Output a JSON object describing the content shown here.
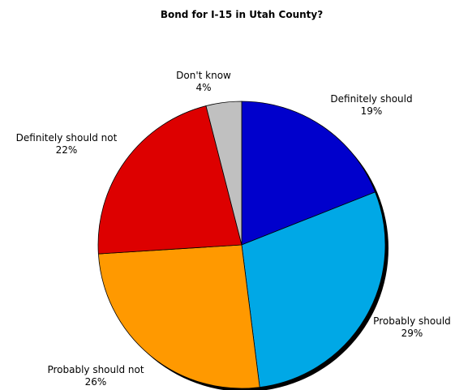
{
  "chart_data": {
    "type": "pie",
    "title": "Bond for I-15 in Utah County?",
    "slices": [
      {
        "label": "Definitely should",
        "value": 19,
        "value_label": "19%",
        "color": "#0000CC"
      },
      {
        "label": "Probably should",
        "value": 29,
        "value_label": "29%",
        "color": "#00A8E6"
      },
      {
        "label": "Probably should not",
        "value": 26,
        "value_label": "26%",
        "color": "#FF9900"
      },
      {
        "label": "Definitely should not",
        "value": 22,
        "value_label": "22%",
        "color": "#DD0000"
      },
      {
        "label": "Don't know",
        "value": 4,
        "value_label": "4%",
        "color": "#C0C0C0"
      }
    ],
    "start": "12 o'clock",
    "direction": "clockwise",
    "legend": "none"
  }
}
